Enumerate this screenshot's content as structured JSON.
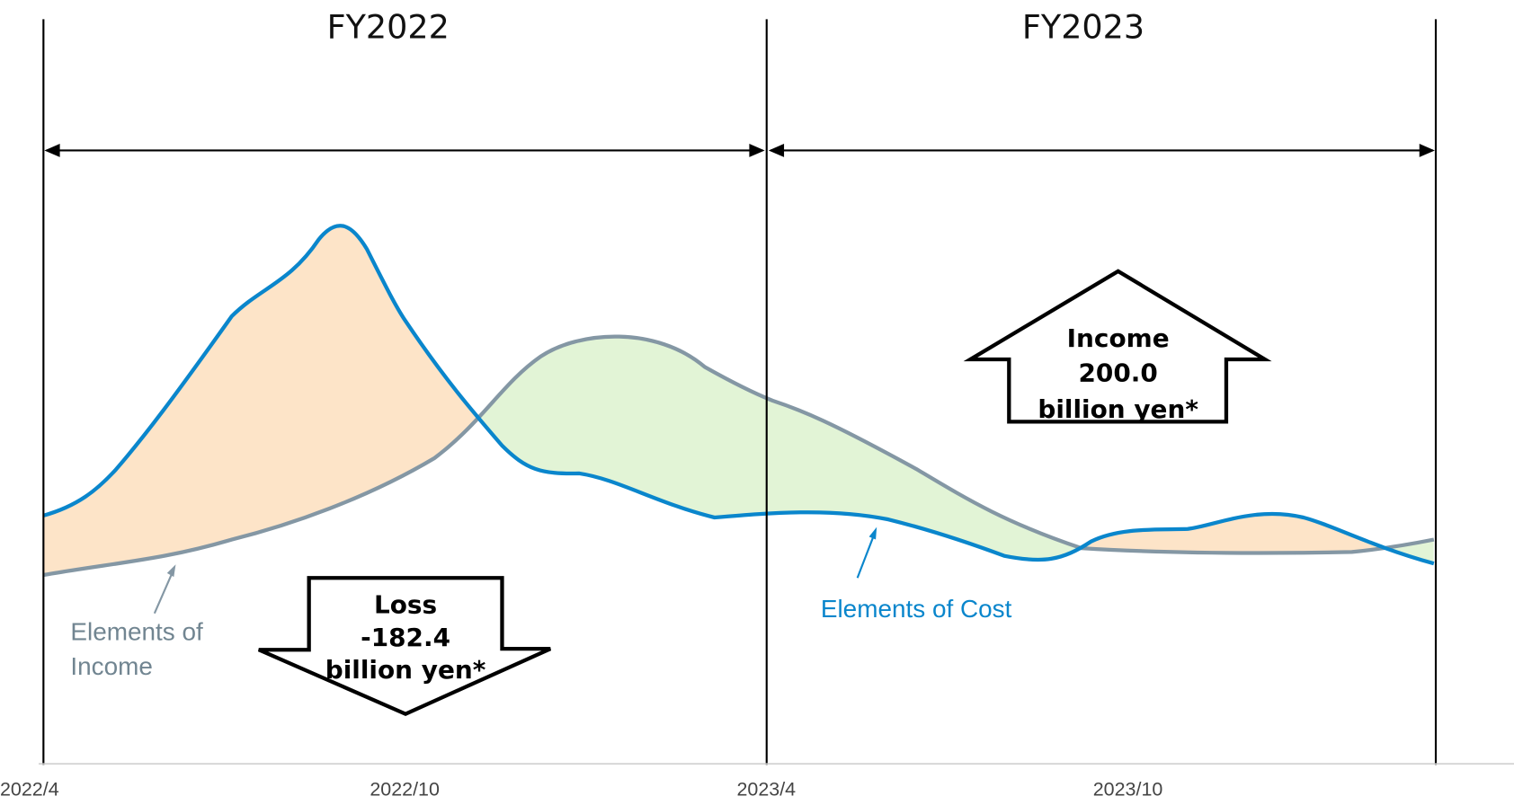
{
  "header": {
    "periods": [
      "FY2022",
      "FY2023"
    ]
  },
  "labels": {
    "income_curve": [
      "Elements of",
      "Income"
    ],
    "cost_curve": "Elements of Cost"
  },
  "callouts": {
    "loss": [
      "Loss",
      "-182.4",
      "billion yen*"
    ],
    "income": [
      "Income",
      "200.0",
      "billion yen*"
    ]
  },
  "x_axis": [
    "2022/4",
    "2022/10",
    "2023/4",
    "2023/10"
  ]
}
